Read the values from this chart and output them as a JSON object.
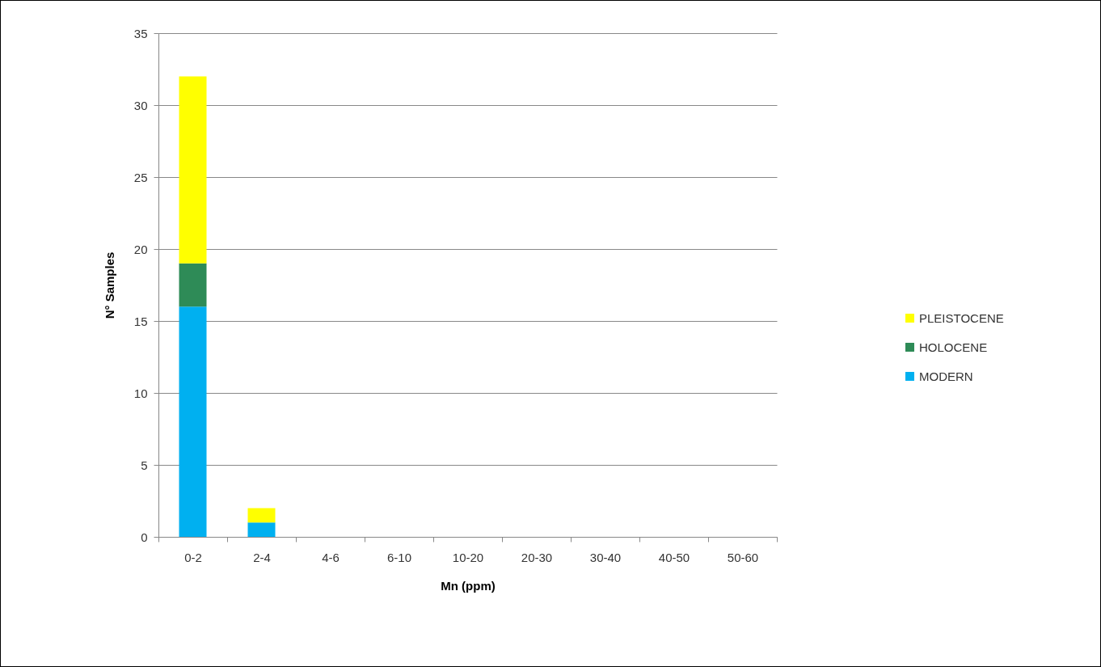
{
  "chart_data": {
    "type": "bar",
    "stacked": true,
    "xlabel": "Mn (ppm)",
    "ylabel": "N° Samples",
    "categories": [
      "0-2",
      "2-4",
      "4-6",
      "6-10",
      "10-20",
      "20-30",
      "30-40",
      "40-50",
      "50-60"
    ],
    "series": [
      {
        "name": "MODERN",
        "color": "#00b0f0",
        "values": [
          16,
          1,
          0,
          0,
          0,
          0,
          0,
          0,
          0
        ]
      },
      {
        "name": "HOLOCENE",
        "color": "#2e8b57",
        "values": [
          3,
          0,
          0,
          0,
          0,
          0,
          0,
          0,
          0
        ]
      },
      {
        "name": "PLEISTOCENE",
        "color": "#ffff00",
        "values": [
          13,
          1,
          0,
          0,
          0,
          0,
          0,
          0,
          0
        ]
      }
    ],
    "ylim": [
      0,
      35
    ],
    "yticks": [
      0,
      5,
      10,
      15,
      20,
      25,
      30,
      35
    ],
    "grid": "y",
    "legend": "right"
  }
}
